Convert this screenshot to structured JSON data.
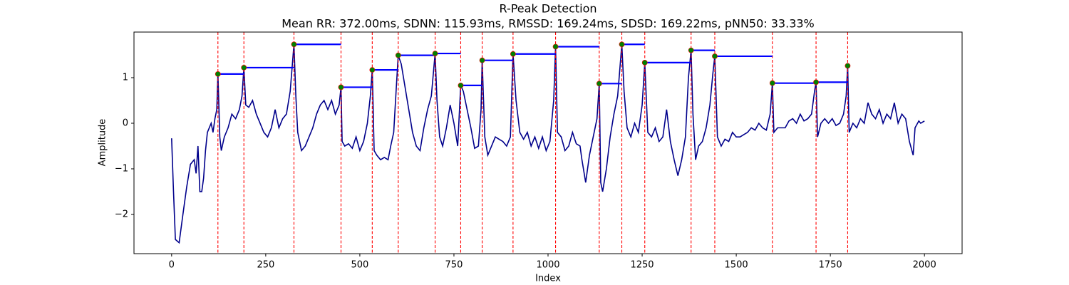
{
  "chart_data": {
    "type": "line",
    "title": "R-Peak Detection",
    "subtitle": "Mean RR: 372.00ms, SDNN: 115.93ms, RMSSD: 169.24ms, SDSD: 169.22ms, pNN50: 33.33%",
    "xlabel": "Index",
    "ylabel": "Amplitude",
    "xlim": [
      -100,
      2100
    ],
    "ylim": [
      -2.86,
      2.0
    ],
    "xticks": [
      0,
      250,
      500,
      750,
      1000,
      1250,
      1500,
      1750,
      2000
    ],
    "yticks": [
      {
        "value": -2,
        "label": "−2"
      },
      {
        "value": -1,
        "label": "−1"
      },
      0,
      1
    ],
    "grid": false,
    "x": [
      0,
      5,
      10,
      20,
      30,
      40,
      50,
      60,
      65,
      70,
      75,
      80,
      85,
      90,
      95,
      100,
      105,
      110,
      115,
      120,
      123,
      128,
      132,
      140,
      150,
      160,
      170,
      180,
      187,
      192,
      197,
      205,
      215,
      225,
      235,
      245,
      255,
      265,
      275,
      285,
      295,
      305,
      315,
      325,
      330,
      335,
      345,
      355,
      365,
      375,
      385,
      395,
      405,
      415,
      425,
      435,
      445,
      450,
      453,
      460,
      470,
      480,
      490,
      500,
      510,
      520,
      528,
      533,
      538,
      545,
      555,
      565,
      575,
      582,
      590,
      597,
      602,
      610,
      620,
      630,
      640,
      650,
      660,
      670,
      680,
      690,
      700,
      705,
      712,
      720,
      730,
      740,
      750,
      760,
      768,
      775,
      785,
      795,
      805,
      815,
      822,
      825,
      832,
      840,
      850,
      860,
      870,
      880,
      890,
      900,
      907,
      915,
      925,
      935,
      945,
      955,
      965,
      975,
      985,
      995,
      1005,
      1015,
      1020,
      1025,
      1035,
      1045,
      1055,
      1065,
      1075,
      1085,
      1090,
      1100,
      1110,
      1120,
      1130,
      1136,
      1140,
      1145,
      1155,
      1165,
      1175,
      1185,
      1196,
      1202,
      1210,
      1220,
      1230,
      1240,
      1250,
      1257,
      1265,
      1275,
      1285,
      1295,
      1305,
      1315,
      1325,
      1335,
      1345,
      1355,
      1365,
      1373,
      1380,
      1385,
      1392,
      1400,
      1410,
      1420,
      1430,
      1438,
      1443,
      1450,
      1460,
      1470,
      1480,
      1490,
      1500,
      1510,
      1520,
      1530,
      1540,
      1550,
      1560,
      1570,
      1580,
      1590,
      1596,
      1600,
      1610,
      1620,
      1630,
      1640,
      1650,
      1660,
      1670,
      1680,
      1690,
      1700,
      1708,
      1712,
      1716,
      1725,
      1735,
      1745,
      1755,
      1765,
      1775,
      1785,
      1792,
      1796,
      1800,
      1810,
      1820,
      1830,
      1840,
      1850,
      1860,
      1870,
      1880,
      1890,
      1900,
      1910,
      1920,
      1930,
      1940,
      1950,
      1960,
      1970,
      1975,
      1985,
      1990,
      2000
    ],
    "series": [
      {
        "color": "#00008b",
        "values": [
          -0.33,
          -1.5,
          -2.55,
          -2.62,
          -2.0,
          -1.4,
          -0.9,
          -0.8,
          -1.1,
          -0.5,
          -1.5,
          -1.5,
          -1.2,
          -0.6,
          -0.2,
          -0.1,
          0,
          -0.2,
          0.1,
          0.3,
          1.08,
          -0.3,
          -0.6,
          -0.3,
          -0.1,
          0.2,
          0.1,
          0.3,
          0.6,
          1.22,
          0.4,
          0.35,
          0.5,
          0.2,
          0.0,
          -0.2,
          -0.3,
          -0.1,
          0.3,
          -0.1,
          0.1,
          0.2,
          0.7,
          1.73,
          0.6,
          -0.2,
          -0.6,
          -0.5,
          -0.3,
          -0.1,
          0.2,
          0.4,
          0.5,
          0.3,
          0.5,
          0.2,
          0.4,
          0.79,
          -0.4,
          -0.5,
          -0.45,
          -0.55,
          -0.3,
          -0.6,
          -0.4,
          0.0,
          0.6,
          1.17,
          -0.6,
          -0.7,
          -0.8,
          -0.75,
          -0.8,
          -0.5,
          -0.2,
          0.8,
          1.49,
          1.3,
          0.8,
          0.3,
          -0.2,
          -0.5,
          -0.6,
          -0.1,
          0.3,
          0.6,
          1.53,
          0.5,
          -0.3,
          -0.5,
          -0.1,
          0.4,
          0.0,
          -0.5,
          0.83,
          0.7,
          0.3,
          -0.1,
          -0.55,
          -0.5,
          0.3,
          1.38,
          -0.3,
          -0.7,
          -0.5,
          -0.3,
          -0.35,
          -0.4,
          -0.5,
          -0.3,
          1.52,
          0.5,
          -0.2,
          -0.35,
          -0.2,
          -0.5,
          -0.3,
          -0.55,
          -0.3,
          -0.6,
          -0.4,
          0.5,
          1.68,
          -0.2,
          -0.3,
          -0.6,
          -0.5,
          -0.2,
          -0.45,
          -0.5,
          -0.8,
          -1.3,
          -0.7,
          -0.3,
          0.1,
          0.87,
          -1.3,
          -1.5,
          -1.0,
          -0.3,
          0.2,
          0.6,
          1.73,
          0.7,
          -0.1,
          -0.3,
          0.0,
          -0.2,
          0.4,
          1.33,
          -0.2,
          -0.3,
          -0.1,
          -0.4,
          -0.3,
          0.3,
          -0.4,
          -0.8,
          -1.15,
          -0.8,
          -0.3,
          1.0,
          1.6,
          0.2,
          -0.8,
          -0.5,
          -0.4,
          -0.1,
          0.4,
          1.1,
          1.47,
          -0.3,
          -0.5,
          -0.35,
          -0.4,
          -0.2,
          -0.3,
          -0.3,
          -0.25,
          -0.2,
          -0.1,
          -0.15,
          0.0,
          -0.1,
          -0.15,
          0.2,
          0.88,
          -0.2,
          -0.1,
          -0.1,
          -0.1,
          0.05,
          0.1,
          0.0,
          0.2,
          0.05,
          0.1,
          0.2,
          0.7,
          0.9,
          -0.3,
          0.0,
          0.1,
          0.0,
          0.1,
          -0.05,
          0.0,
          0.2,
          0.6,
          1.26,
          -0.2,
          0.0,
          -0.1,
          0.1,
          0.0,
          0.45,
          0.2,
          0.1,
          0.3,
          0.0,
          0.2,
          0.1,
          0.45,
          0.0,
          0.2,
          0.1,
          -0.4,
          -0.7,
          -0.1,
          0.05,
          0.0,
          0.05
        ]
      }
    ],
    "peaks": {
      "x": [
        123,
        192,
        325,
        450,
        533,
        602,
        700,
        768,
        825,
        907,
        1020,
        1136,
        1196,
        1257,
        1380,
        1443,
        1596,
        1712,
        1796
      ],
      "values": [
        1.08,
        1.22,
        1.73,
        0.79,
        1.17,
        1.49,
        1.53,
        0.83,
        1.38,
        1.52,
        1.68,
        0.87,
        1.73,
        1.33,
        1.6,
        1.47,
        0.88,
        0.9,
        1.26
      ],
      "color": "green",
      "line_color": "red",
      "interval_color": "blue"
    }
  }
}
